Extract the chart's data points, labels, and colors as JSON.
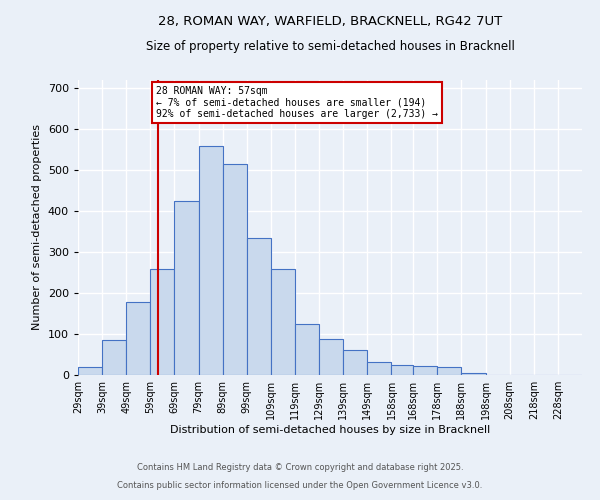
{
  "title1": "28, ROMAN WAY, WARFIELD, BRACKNELL, RG42 7UT",
  "title2": "Size of property relative to semi-detached houses in Bracknell",
  "xlabel": "Distribution of semi-detached houses by size in Bracknell",
  "ylabel": "Number of semi-detached properties",
  "annotation_title": "28 ROMAN WAY: 57sqm",
  "annotation_line1": "← 7% of semi-detached houses are smaller (194)",
  "annotation_line2": "92% of semi-detached houses are larger (2,733) →",
  "footnote1": "Contains HM Land Registry data © Crown copyright and database right 2025.",
  "footnote2": "Contains public sector information licensed under the Open Government Licence v3.0.",
  "bar_color": "#c9d9ed",
  "bar_edge_color": "#4472c4",
  "background_color": "#eaf0f8",
  "grid_color": "#ffffff",
  "annotation_box_color": "#ffffff",
  "annotation_box_edge": "#cc0000",
  "vertical_line_color": "#cc0000",
  "categories": [
    "29sqm",
    "39sqm",
    "49sqm",
    "59sqm",
    "69sqm",
    "79sqm",
    "89sqm",
    "99sqm",
    "109sqm",
    "119sqm",
    "129sqm",
    "139sqm",
    "149sqm",
    "158sqm",
    "168sqm",
    "178sqm",
    "188sqm",
    "198sqm",
    "208sqm",
    "218sqm",
    "228sqm"
  ],
  "values": [
    20,
    85,
    178,
    258,
    425,
    560,
    515,
    335,
    258,
    125,
    88,
    60,
    32,
    25,
    22,
    20,
    5,
    0,
    0,
    0,
    0
  ],
  "property_sqm": 57,
  "bin_edges": [
    24,
    34,
    44,
    54,
    64,
    74,
    84,
    94,
    104,
    114,
    124,
    134,
    144,
    154,
    163,
    173,
    183,
    193,
    203,
    213,
    223,
    233
  ],
  "ylim": [
    0,
    720
  ],
  "yticks": [
    0,
    100,
    200,
    300,
    400,
    500,
    600,
    700
  ]
}
